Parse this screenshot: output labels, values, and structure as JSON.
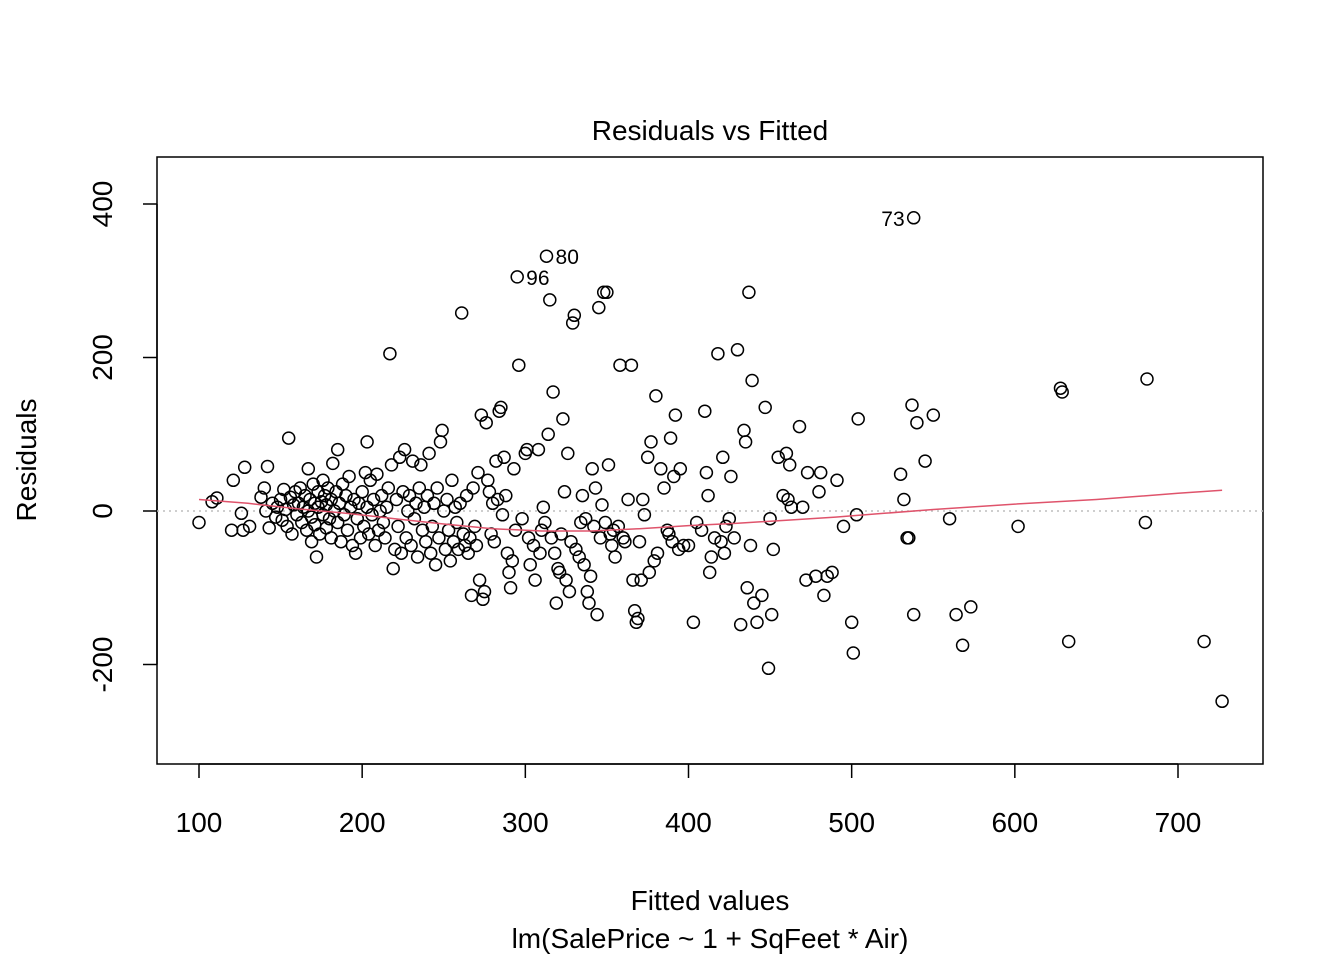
{
  "chart_data": {
    "type": "scatter",
    "title": "Residuals vs Fitted",
    "xlabel": "Fitted values",
    "subtitle": "lm(SalePrice ~ 1 + SqFeet * Air)",
    "ylabel": "Residuals",
    "xlim": [
      80,
      750
    ],
    "ylim": [
      -325,
      460
    ],
    "xticks": [
      100,
      200,
      300,
      400,
      500,
      600,
      700
    ],
    "yticks": [
      -200,
      0,
      200,
      400
    ],
    "xtick_labels": [
      "100",
      "200",
      "300",
      "400",
      "500",
      "600",
      "700"
    ],
    "ytick_labels": [
      "-200",
      "0",
      "200",
      "400"
    ],
    "grid": false,
    "reference_line": {
      "y": 0,
      "style": "dotted",
      "color": "#bebebe"
    },
    "smoother": {
      "color": "#df536b",
      "points": [
        [
          100,
          15
        ],
        [
          130,
          10
        ],
        [
          160,
          3
        ],
        [
          190,
          -3
        ],
        [
          220,
          -10
        ],
        [
          250,
          -17
        ],
        [
          280,
          -23
        ],
        [
          310,
          -26
        ],
        [
          340,
          -26
        ],
        [
          370,
          -23
        ],
        [
          400,
          -19
        ],
        [
          430,
          -16
        ],
        [
          460,
          -12
        ],
        [
          490,
          -8
        ],
        [
          520,
          -3
        ],
        [
          550,
          2
        ],
        [
          600,
          9
        ],
        [
          650,
          15
        ],
        [
          700,
          23
        ],
        [
          727,
          27
        ]
      ]
    },
    "labeled_points": [
      {
        "label": "73",
        "x": 538,
        "y": 382,
        "side": "left"
      },
      {
        "label": "80",
        "x": 313,
        "y": 332,
        "side": "right"
      },
      {
        "label": "96",
        "x": 295,
        "y": 305,
        "side": "right"
      }
    ],
    "points": [
      [
        538,
        382
      ],
      [
        313,
        332
      ],
      [
        295,
        305
      ],
      [
        100,
        -15
      ],
      [
        108,
        12
      ],
      [
        111,
        17
      ],
      [
        120,
        -25
      ],
      [
        121,
        40
      ],
      [
        126,
        -3
      ],
      [
        127,
        -25
      ],
      [
        128,
        57
      ],
      [
        131,
        -20
      ],
      [
        138,
        18
      ],
      [
        140,
        30
      ],
      [
        141,
        0
      ],
      [
        142,
        58
      ],
      [
        143,
        -22
      ],
      [
        145,
        10
      ],
      [
        147,
        -8
      ],
      [
        148,
        5
      ],
      [
        150,
        15
      ],
      [
        151,
        -12
      ],
      [
        152,
        28
      ],
      [
        153,
        2
      ],
      [
        154,
        -20
      ],
      [
        155,
        95
      ],
      [
        156,
        18
      ],
      [
        157,
        -30
      ],
      [
        158,
        8
      ],
      [
        159,
        25
      ],
      [
        160,
        -5
      ],
      [
        161,
        10
      ],
      [
        162,
        30
      ],
      [
        163,
        -15
      ],
      [
        164,
        5
      ],
      [
        165,
        20
      ],
      [
        166,
        -25
      ],
      [
        167,
        55
      ],
      [
        167,
        0
      ],
      [
        168,
        15
      ],
      [
        169,
        -8
      ],
      [
        169,
        -40
      ],
      [
        170,
        35
      ],
      [
        171,
        10
      ],
      [
        171,
        -18
      ],
      [
        172,
        -60
      ],
      [
        173,
        5
      ],
      [
        173,
        25
      ],
      [
        174,
        -30
      ],
      [
        175,
        12
      ],
      [
        176,
        -5
      ],
      [
        176,
        40
      ],
      [
        177,
        20
      ],
      [
        178,
        -22
      ],
      [
        178,
        8
      ],
      [
        179,
        30
      ],
      [
        180,
        -10
      ],
      [
        181,
        15
      ],
      [
        181,
        -35
      ],
      [
        182,
        62
      ],
      [
        183,
        0
      ],
      [
        184,
        25
      ],
      [
        185,
        -15
      ],
      [
        185,
        80
      ],
      [
        186,
        10
      ],
      [
        187,
        -40
      ],
      [
        188,
        35
      ],
      [
        189,
        -5
      ],
      [
        190,
        20
      ],
      [
        191,
        -25
      ],
      [
        192,
        45
      ],
      [
        193,
        5
      ],
      [
        194,
        -45
      ],
      [
        195,
        15
      ],
      [
        196,
        -55
      ],
      [
        197,
        -10
      ],
      [
        198,
        10
      ],
      [
        199,
        -35
      ],
      [
        200,
        25
      ],
      [
        201,
        -20
      ],
      [
        202,
        50
      ],
      [
        203,
        5
      ],
      [
        203,
        90
      ],
      [
        204,
        -30
      ],
      [
        205,
        40
      ],
      [
        206,
        -5
      ],
      [
        207,
        15
      ],
      [
        208,
        -45
      ],
      [
        209,
        48
      ],
      [
        210,
        -25
      ],
      [
        211,
        0
      ],
      [
        212,
        20
      ],
      [
        213,
        -15
      ],
      [
        214,
        -35
      ],
      [
        215,
        5
      ],
      [
        216,
        30
      ],
      [
        217,
        205
      ],
      [
        218,
        60
      ],
      [
        219,
        -75
      ],
      [
        220,
        -50
      ],
      [
        221,
        15
      ],
      [
        222,
        -20
      ],
      [
        223,
        70
      ],
      [
        224,
        -55
      ],
      [
        225,
        25
      ],
      [
        226,
        80
      ],
      [
        227,
        -35
      ],
      [
        228,
        0
      ],
      [
        229,
        20
      ],
      [
        230,
        -45
      ],
      [
        231,
        65
      ],
      [
        232,
        -10
      ],
      [
        233,
        10
      ],
      [
        234,
        -60
      ],
      [
        235,
        30
      ],
      [
        236,
        60
      ],
      [
        237,
        -25
      ],
      [
        238,
        5
      ],
      [
        239,
        -40
      ],
      [
        240,
        20
      ],
      [
        241,
        75
      ],
      [
        242,
        -55
      ],
      [
        243,
        -20
      ],
      [
        244,
        10
      ],
      [
        245,
        -70
      ],
      [
        246,
        30
      ],
      [
        247,
        -35
      ],
      [
        248,
        90
      ],
      [
        249,
        105
      ],
      [
        250,
        0
      ],
      [
        251,
        -50
      ],
      [
        252,
        15
      ],
      [
        253,
        -25
      ],
      [
        254,
        -65
      ],
      [
        255,
        40
      ],
      [
        256,
        -40
      ],
      [
        257,
        5
      ],
      [
        258,
        -15
      ],
      [
        259,
        -50
      ],
      [
        260,
        10
      ],
      [
        261,
        258
      ],
      [
        262,
        -30
      ],
      [
        263,
        -45
      ],
      [
        264,
        20
      ],
      [
        265,
        -55
      ],
      [
        266,
        -35
      ],
      [
        267,
        -110
      ],
      [
        268,
        30
      ],
      [
        269,
        -20
      ],
      [
        270,
        -45
      ],
      [
        271,
        50
      ],
      [
        272,
        -90
      ],
      [
        273,
        125
      ],
      [
        274,
        -115
      ],
      [
        275,
        -105
      ],
      [
        276,
        115
      ],
      [
        277,
        40
      ],
      [
        278,
        25
      ],
      [
        279,
        -30
      ],
      [
        280,
        10
      ],
      [
        281,
        -40
      ],
      [
        282,
        65
      ],
      [
        283,
        15
      ],
      [
        284,
        130
      ],
      [
        285,
        135
      ],
      [
        286,
        -5
      ],
      [
        287,
        70
      ],
      [
        288,
        20
      ],
      [
        289,
        -55
      ],
      [
        290,
        -80
      ],
      [
        291,
        -100
      ],
      [
        292,
        -65
      ],
      [
        293,
        55
      ],
      [
        294,
        -25
      ],
      [
        296,
        190
      ],
      [
        298,
        -10
      ],
      [
        300,
        75
      ],
      [
        301,
        80
      ],
      [
        302,
        -35
      ],
      [
        303,
        -70
      ],
      [
        305,
        -45
      ],
      [
        306,
        -90
      ],
      [
        308,
        80
      ],
      [
        309,
        -55
      ],
      [
        310,
        -25
      ],
      [
        311,
        5
      ],
      [
        312,
        -15
      ],
      [
        314,
        100
      ],
      [
        315,
        275
      ],
      [
        316,
        -35
      ],
      [
        317,
        155
      ],
      [
        318,
        -55
      ],
      [
        319,
        -120
      ],
      [
        320,
        -75
      ],
      [
        321,
        -80
      ],
      [
        322,
        -30
      ],
      [
        323,
        120
      ],
      [
        324,
        25
      ],
      [
        325,
        -90
      ],
      [
        326,
        75
      ],
      [
        327,
        -105
      ],
      [
        328,
        -40
      ],
      [
        329,
        245
      ],
      [
        330,
        255
      ],
      [
        331,
        -50
      ],
      [
        333,
        -60
      ],
      [
        334,
        -15
      ],
      [
        335,
        20
      ],
      [
        336,
        -70
      ],
      [
        337,
        -10
      ],
      [
        338,
        -105
      ],
      [
        339,
        -120
      ],
      [
        340,
        -85
      ],
      [
        341,
        55
      ],
      [
        342,
        -20
      ],
      [
        343,
        30
      ],
      [
        344,
        -135
      ],
      [
        345,
        265
      ],
      [
        346,
        -35
      ],
      [
        347,
        8
      ],
      [
        348,
        285
      ],
      [
        349,
        -15
      ],
      [
        350,
        285
      ],
      [
        351,
        60
      ],
      [
        352,
        -30
      ],
      [
        353,
        -45
      ],
      [
        354,
        -25
      ],
      [
        355,
        -60
      ],
      [
        357,
        -20
      ],
      [
        358,
        190
      ],
      [
        360,
        -35
      ],
      [
        361,
        -40
      ],
      [
        363,
        15
      ],
      [
        365,
        190
      ],
      [
        366,
        -90
      ],
      [
        367,
        -130
      ],
      [
        368,
        -145
      ],
      [
        369,
        -140
      ],
      [
        370,
        -40
      ],
      [
        371,
        -90
      ],
      [
        372,
        15
      ],
      [
        373,
        -5
      ],
      [
        375,
        70
      ],
      [
        376,
        -80
      ],
      [
        377,
        90
      ],
      [
        379,
        -65
      ],
      [
        380,
        150
      ],
      [
        381,
        -55
      ],
      [
        383,
        55
      ],
      [
        385,
        30
      ],
      [
        387,
        -25
      ],
      [
        388,
        -30
      ],
      [
        389,
        95
      ],
      [
        390,
        -40
      ],
      [
        391,
        45
      ],
      [
        392,
        125
      ],
      [
        394,
        -50
      ],
      [
        395,
        55
      ],
      [
        397,
        -45
      ],
      [
        400,
        -45
      ],
      [
        403,
        -145
      ],
      [
        405,
        -15
      ],
      [
        408,
        -25
      ],
      [
        410,
        130
      ],
      [
        411,
        50
      ],
      [
        412,
        20
      ],
      [
        413,
        -80
      ],
      [
        414,
        -60
      ],
      [
        416,
        -35
      ],
      [
        418,
        205
      ],
      [
        420,
        -40
      ],
      [
        421,
        70
      ],
      [
        422,
        -55
      ],
      [
        423,
        -20
      ],
      [
        425,
        -10
      ],
      [
        426,
        45
      ],
      [
        428,
        -35
      ],
      [
        430,
        210
      ],
      [
        432,
        -148
      ],
      [
        434,
        105
      ],
      [
        435,
        90
      ],
      [
        436,
        -100
      ],
      [
        437,
        285
      ],
      [
        438,
        -45
      ],
      [
        439,
        170
      ],
      [
        440,
        -120
      ],
      [
        442,
        -145
      ],
      [
        445,
        -110
      ],
      [
        447,
        135
      ],
      [
        449,
        -205
      ],
      [
        450,
        -10
      ],
      [
        451,
        -135
      ],
      [
        452,
        -50
      ],
      [
        455,
        70
      ],
      [
        458,
        20
      ],
      [
        460,
        75
      ],
      [
        461,
        15
      ],
      [
        462,
        60
      ],
      [
        463,
        5
      ],
      [
        468,
        110
      ],
      [
        470,
        5
      ],
      [
        472,
        -90
      ],
      [
        473,
        50
      ],
      [
        478,
        -85
      ],
      [
        480,
        25
      ],
      [
        481,
        50
      ],
      [
        483,
        -110
      ],
      [
        485,
        -85
      ],
      [
        488,
        -80
      ],
      [
        491,
        40
      ],
      [
        495,
        -20
      ],
      [
        500,
        -145
      ],
      [
        501,
        -185
      ],
      [
        503,
        -5
      ],
      [
        504,
        120
      ],
      [
        530,
        48
      ],
      [
        532,
        15
      ],
      [
        534,
        -35
      ],
      [
        535,
        -35
      ],
      [
        537,
        138
      ],
      [
        538,
        -135
      ],
      [
        540,
        115
      ],
      [
        545,
        65
      ],
      [
        550,
        125
      ],
      [
        560,
        -10
      ],
      [
        564,
        -135
      ],
      [
        568,
        -175
      ],
      [
        573,
        -125
      ],
      [
        602,
        -20
      ],
      [
        628,
        160
      ],
      [
        629,
        155
      ],
      [
        633,
        -170
      ],
      [
        680,
        -15
      ],
      [
        681,
        172
      ],
      [
        716,
        -170
      ],
      [
        727,
        -248
      ]
    ]
  }
}
